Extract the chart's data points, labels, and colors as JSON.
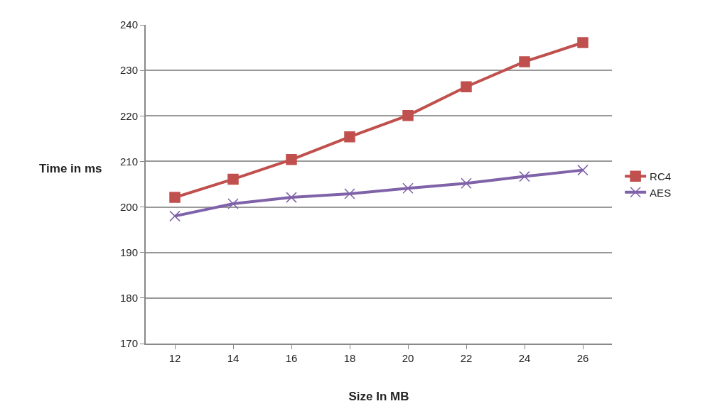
{
  "chart_data": {
    "type": "line",
    "xlabel": "Size In MB",
    "ylabel": "Time in ms",
    "categories": [
      "12",
      "14",
      "16",
      "18",
      "20",
      "22",
      "24",
      "26"
    ],
    "series": [
      {
        "name": "RC4",
        "color": "#c0504d",
        "marker": "square",
        "values": [
          202.1,
          206.1,
          210.4,
          215.4,
          220.1,
          226.4,
          231.9,
          236.1
        ]
      },
      {
        "name": "AES",
        "color": "#7f62a8",
        "marker": "cross",
        "values": [
          198.0,
          200.7,
          202.1,
          202.9,
          204.1,
          205.2,
          206.7,
          208.1
        ]
      }
    ],
    "ylim": [
      170,
      240
    ],
    "yticks": [
      170,
      180,
      190,
      200,
      210,
      220,
      230,
      240
    ],
    "grid": "y",
    "legend": "right"
  }
}
